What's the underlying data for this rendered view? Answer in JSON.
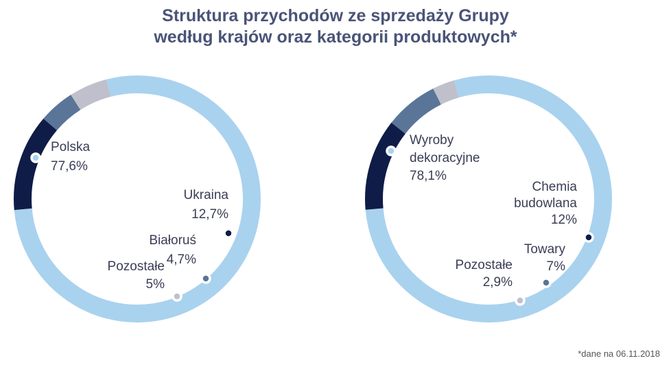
{
  "title": {
    "line1": "Struktura przychodów ze sprzedaży Grupy",
    "line2": "według krajów oraz kategorii produktowych*"
  },
  "footnote": "*dane na 06.11.2018",
  "colors": {
    "light_blue": "#a9d2ef",
    "navy": "#0f1c48",
    "slate": "#5a7598",
    "gray": "#bfc0cc",
    "marker_stroke": "#ffffff"
  },
  "chart_data": [
    {
      "type": "pie",
      "style": "donut",
      "slices": [
        {
          "label_lines": [
            "Polska"
          ],
          "value_text": "77,6%",
          "value": 77.6
        },
        {
          "label_lines": [
            "Ukraina"
          ],
          "value_text": "12,7%",
          "value": 12.7
        },
        {
          "label_lines": [
            "Białoruś"
          ],
          "value_text": "4,7%",
          "value": 4.7
        },
        {
          "label_lines": [
            "Pozostałe"
          ],
          "value_text": "5%",
          "value": 5
        }
      ]
    },
    {
      "type": "pie",
      "style": "donut",
      "slices": [
        {
          "label_lines": [
            "Wyroby",
            "dekoracyjne"
          ],
          "value_text": "78,1%",
          "value": 78.1
        },
        {
          "label_lines": [
            "Chemia",
            "budowlana"
          ],
          "value_text": "12%",
          "value": 12
        },
        {
          "label_lines": [
            "Towary"
          ],
          "value_text": "7%",
          "value": 7
        },
        {
          "label_lines": [
            "Pozostałe"
          ],
          "value_text": "2,9%",
          "value": 2.9
        }
      ]
    }
  ]
}
